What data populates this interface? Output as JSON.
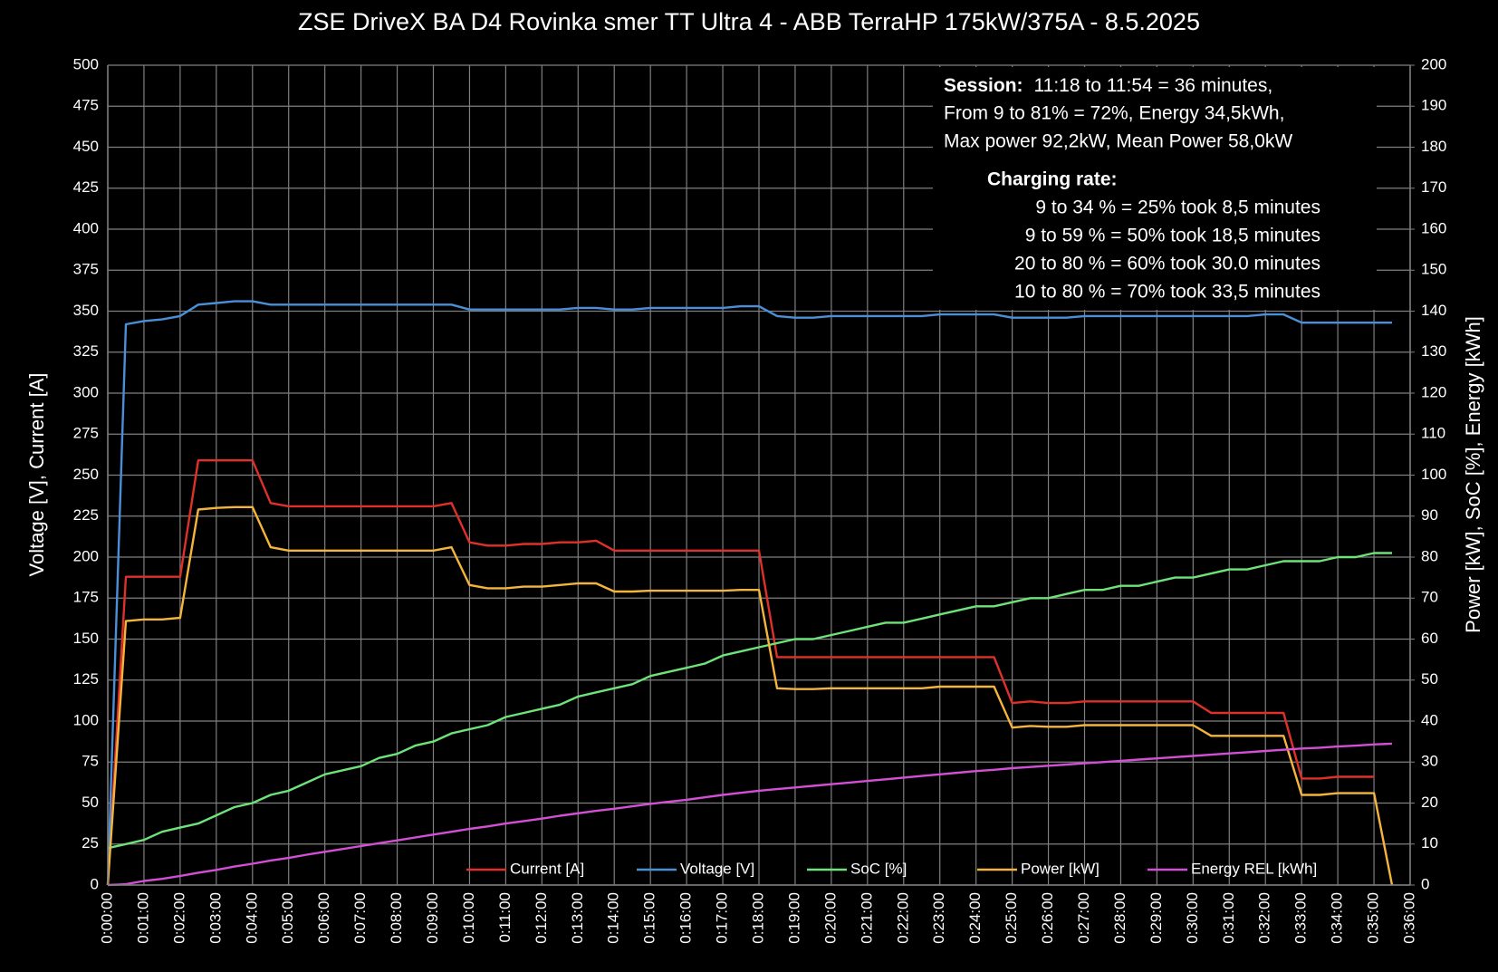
{
  "chart_data": {
    "type": "line",
    "title": "ZSE DriveX BA D4 Rovinka smer TT Ultra 4 - ABB TerraHP 175kW/375A - 8.5.2025",
    "y_label": "Voltage [V], Current [A]",
    "y2_label": "Power [kW], SoC [%], Energy [kWh]",
    "grid": true,
    "legend": "bottom",
    "xlim": [
      0,
      36
    ],
    "xticks": [
      {
        "value": 0,
        "label": "0:00:00"
      },
      {
        "value": 1,
        "label": "0:01:00"
      },
      {
        "value": 2,
        "label": "0:02:00"
      },
      {
        "value": 3,
        "label": "0:03:00"
      },
      {
        "value": 4,
        "label": "0:04:00"
      },
      {
        "value": 5,
        "label": "0:05:00"
      },
      {
        "value": 6,
        "label": "0:06:00"
      },
      {
        "value": 7,
        "label": "0:07:00"
      },
      {
        "value": 8,
        "label": "0:08:00"
      },
      {
        "value": 9,
        "label": "0:09:00"
      },
      {
        "value": 10,
        "label": "0:10:00"
      },
      {
        "value": 11,
        "label": "0:11:00"
      },
      {
        "value": 12,
        "label": "0:12:00"
      },
      {
        "value": 13,
        "label": "0:13:00"
      },
      {
        "value": 14,
        "label": "0:14:00"
      },
      {
        "value": 15,
        "label": "0:15:00"
      },
      {
        "value": 16,
        "label": "0:16:00"
      },
      {
        "value": 17,
        "label": "0:17:00"
      },
      {
        "value": 18,
        "label": "0:18:00"
      },
      {
        "value": 19,
        "label": "0:19:00"
      },
      {
        "value": 20,
        "label": "0:20:00"
      },
      {
        "value": 21,
        "label": "0:21:00"
      },
      {
        "value": 22,
        "label": "0:22:00"
      },
      {
        "value": 23,
        "label": "0:23:00"
      },
      {
        "value": 24,
        "label": "0:24:00"
      },
      {
        "value": 25,
        "label": "0:25:00"
      },
      {
        "value": 26,
        "label": "0:26:00"
      },
      {
        "value": 27,
        "label": "0:27:00"
      },
      {
        "value": 28,
        "label": "0:28:00"
      },
      {
        "value": 29,
        "label": "0:29:00"
      },
      {
        "value": 30,
        "label": "0:30:00"
      },
      {
        "value": 31,
        "label": "0:31:00"
      },
      {
        "value": 32,
        "label": "0:32:00"
      },
      {
        "value": 33,
        "label": "0:33:00"
      },
      {
        "value": 34,
        "label": "0:34:00"
      },
      {
        "value": 35,
        "label": "0:35:00"
      },
      {
        "value": 36,
        "label": "0:36:00"
      }
    ],
    "ylim": [
      0,
      500
    ],
    "yticks": [
      0,
      25,
      50,
      75,
      100,
      125,
      150,
      175,
      200,
      225,
      250,
      275,
      300,
      325,
      350,
      375,
      400,
      425,
      450,
      475,
      500
    ],
    "y2lim": [
      0,
      200
    ],
    "y2ticks": [
      0,
      10,
      20,
      30,
      40,
      50,
      60,
      70,
      80,
      90,
      100,
      110,
      120,
      130,
      140,
      150,
      160,
      170,
      180,
      190,
      200
    ],
    "x": [
      0,
      0.5,
      1,
      1.5,
      2,
      2.5,
      3,
      3.5,
      4,
      4.5,
      5,
      5.5,
      6,
      6.5,
      7,
      7.5,
      8,
      8.5,
      9,
      9.5,
      10,
      10.5,
      11,
      11.5,
      12,
      12.5,
      13,
      13.5,
      14,
      14.5,
      15,
      15.5,
      16,
      16.5,
      17,
      17.5,
      18,
      18.5,
      19,
      19.5,
      20,
      20.5,
      21,
      21.5,
      22,
      22.5,
      23,
      23.5,
      24,
      24.5,
      25,
      25.5,
      26,
      26.5,
      27,
      27.5,
      28,
      28.5,
      29,
      29.5,
      30,
      30.5,
      31,
      31.5,
      32,
      32.5,
      33,
      33.5,
      34,
      34.5,
      35,
      35.5
    ],
    "series": [
      {
        "name": "Current [A]",
        "color": "#e0302a",
        "values": [
          0,
          188,
          188,
          188,
          188,
          259,
          259,
          259,
          259,
          233,
          231,
          231,
          231,
          231,
          231,
          231,
          231,
          231,
          231,
          233,
          209,
          207,
          207,
          208,
          208,
          209,
          209,
          210,
          204,
          204,
          204,
          204,
          204,
          204,
          204,
          204,
          204,
          139,
          139,
          139,
          139,
          139,
          139,
          139,
          139,
          139,
          139,
          139,
          139,
          139,
          111,
          112,
          111,
          111,
          112,
          112,
          112,
          112,
          112,
          112,
          112,
          105,
          105,
          105,
          105,
          105,
          65,
          65,
          66,
          66,
          66,
          null
        ]
      },
      {
        "name": "Voltage [V]",
        "color": "#4a90d9",
        "values": [
          0,
          342,
          344,
          345,
          347,
          354,
          355,
          356,
          356,
          354,
          354,
          354,
          354,
          354,
          354,
          354,
          354,
          354,
          354,
          354,
          351,
          351,
          351,
          351,
          351,
          351,
          352,
          352,
          351,
          351,
          352,
          352,
          352,
          352,
          352,
          353,
          353,
          347,
          346,
          346,
          347,
          347,
          347,
          347,
          347,
          347,
          348,
          348,
          348,
          348,
          346,
          346,
          346,
          346,
          347,
          347,
          347,
          347,
          347,
          347,
          347,
          347,
          347,
          347,
          348,
          348,
          343,
          343,
          343,
          343,
          343,
          343
        ]
      },
      {
        "name": "SoC [%]",
        "color": "#6de37a",
        "axis": "y2",
        "values": [
          9,
          10,
          11,
          13,
          14,
          15,
          17,
          19,
          20,
          22,
          23,
          25,
          27,
          28,
          29,
          31,
          32,
          34,
          35,
          37,
          38,
          39,
          41,
          42,
          43,
          44,
          46,
          47,
          48,
          49,
          51,
          52,
          53,
          54,
          56,
          57,
          58,
          59,
          60,
          60,
          61,
          62,
          63,
          64,
          64,
          65,
          66,
          67,
          68,
          68,
          69,
          70,
          70,
          71,
          72,
          72,
          73,
          73,
          74,
          75,
          75,
          76,
          77,
          77,
          78,
          79,
          79,
          79,
          80,
          80,
          81,
          81
        ]
      },
      {
        "name": "Power [kW]",
        "color": "#f5b53c",
        "axis": "y2",
        "values": [
          0,
          64.4,
          64.8,
          64.8,
          65.2,
          91.6,
          92,
          92.2,
          92.2,
          82.4,
          81.6,
          81.6,
          81.6,
          81.6,
          81.6,
          81.6,
          81.6,
          81.6,
          81.6,
          82.4,
          73.2,
          72.4,
          72.4,
          72.8,
          72.8,
          73.2,
          73.6,
          73.6,
          71.6,
          71.6,
          71.8,
          71.8,
          71.8,
          71.8,
          71.8,
          72,
          72,
          48,
          47.8,
          47.8,
          48,
          48,
          48,
          48,
          48,
          48,
          48.4,
          48.4,
          48.4,
          48.4,
          38.4,
          38.8,
          38.6,
          38.6,
          39,
          39,
          39,
          39,
          39,
          39,
          39,
          36.4,
          36.4,
          36.4,
          36.4,
          36.4,
          22,
          22,
          22.4,
          22.4,
          22.4,
          0
        ]
      },
      {
        "name": "Energy REL [kWh]",
        "color": "#d24fd6",
        "axis": "y2",
        "values": [
          0,
          0.2,
          1,
          1.5,
          2.2,
          3,
          3.7,
          4.5,
          5.2,
          6,
          6.6,
          7.4,
          8.1,
          8.8,
          9.5,
          10.2,
          10.9,
          11.6,
          12.3,
          13,
          13.7,
          14.3,
          15,
          15.6,
          16.2,
          16.9,
          17.5,
          18.1,
          18.6,
          19.2,
          19.8,
          20.3,
          20.8,
          21.4,
          22,
          22.5,
          23,
          23.4,
          23.8,
          24.2,
          24.6,
          25,
          25.4,
          25.8,
          26.2,
          26.6,
          27,
          27.4,
          27.8,
          28.1,
          28.5,
          28.8,
          29.1,
          29.4,
          29.7,
          30,
          30.3,
          30.6,
          30.9,
          31.2,
          31.5,
          31.8,
          32.1,
          32.4,
          32.7,
          33,
          33.3,
          33.5,
          33.8,
          34,
          34.3,
          34.5
        ]
      }
    ],
    "annotation": {
      "session_label": "Session:",
      "session_lines": [
        "11:18 to 11:54 = 36 minutes,",
        "From 9 to 81% = 72%, Energy 34,5kWh,",
        "Max power 92,2kW, Mean Power 58,0kW"
      ],
      "rate_label": "Charging rate:",
      "rate_lines": [
        "9 to 34 % = 25% took   8,5 minutes",
        "9 to 59 % = 50% took 18,5 minutes",
        "20 to 80 % = 60% took 30.0 minutes",
        "10 to 80 % = 70% took 33,5 minutes"
      ]
    }
  }
}
